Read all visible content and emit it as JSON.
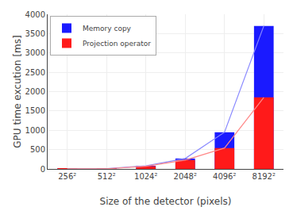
{
  "chart_data": {
    "type": "bar",
    "xlabel": "Size of the detector (pixels)",
    "ylabel": "GPU time excution [ms]",
    "categories": [
      "256²",
      "512²",
      "1024²",
      "2048²",
      "4096²",
      "8192²"
    ],
    "series": [
      {
        "name": "Memory copy",
        "type": "bar",
        "color": "#1a1aff",
        "values": [
          5,
          10,
          80,
          270,
          950,
          3700
        ]
      },
      {
        "name": "Projection operator",
        "type": "bar",
        "color": "#ff1a1a",
        "values": [
          2,
          5,
          70,
          230,
          540,
          1850
        ]
      },
      {
        "type": "line",
        "color": "#8888ff",
        "values": [
          5,
          10,
          80,
          270,
          950,
          3700
        ]
      },
      {
        "type": "line",
        "color": "#ff8888",
        "values": [
          2,
          5,
          70,
          230,
          540,
          1850
        ]
      }
    ],
    "ylim": [
      0,
      4000
    ],
    "yticks": [
      0,
      500,
      1000,
      1500,
      2000,
      2500,
      3000,
      3500,
      4000
    ],
    "grid": true,
    "legend": "upper left"
  }
}
